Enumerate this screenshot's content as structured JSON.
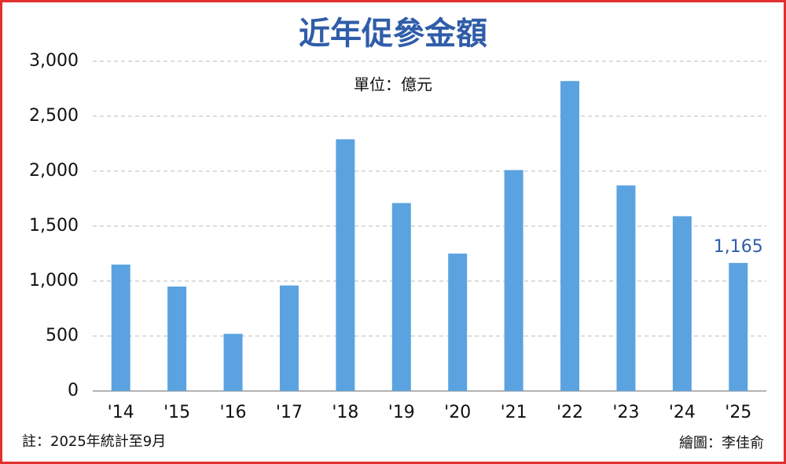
{
  "chart_data": {
    "type": "bar",
    "title": "近年促參金額",
    "unit": "單位：億元",
    "categories": [
      "'14",
      "'15",
      "'16",
      "'17",
      "'18",
      "'19",
      "'20",
      "'21",
      "'22",
      "'23",
      "'24",
      "'25"
    ],
    "values": [
      1150,
      950,
      520,
      960,
      2290,
      1710,
      1250,
      2010,
      2820,
      1870,
      1590,
      1165
    ],
    "value_labels": [
      null,
      null,
      null,
      null,
      null,
      null,
      null,
      null,
      null,
      null,
      null,
      "1,165"
    ],
    "color": "#5ba3e0",
    "ylim": [
      0,
      3000
    ],
    "yticks": [
      0,
      500,
      {
        "value": 1000,
        "label": "1,000"
      },
      {
        "value": 1500,
        "label": "1,500"
      },
      {
        "value": 2000,
        "label": "2,000"
      },
      {
        "value": 2500,
        "label": "2,500"
      },
      {
        "value": 3000,
        "label": "3,000"
      }
    ],
    "grid": true,
    "note": "註：2025年統計至9月",
    "credit": "繪圖：李佳俞"
  }
}
